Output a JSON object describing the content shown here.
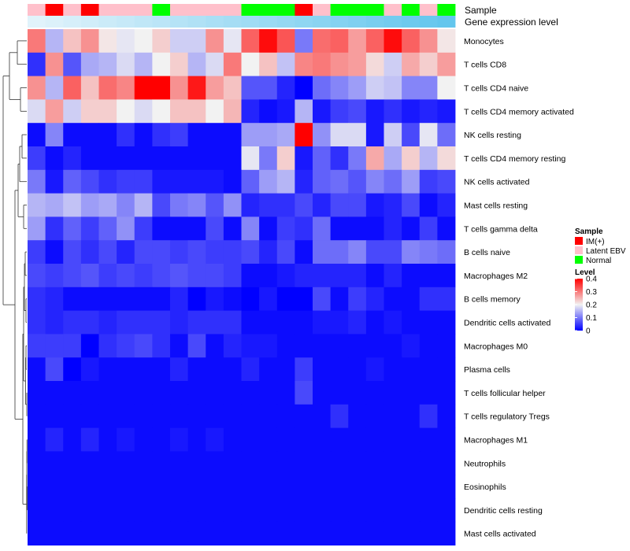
{
  "chart_data": {
    "type": "heatmap",
    "title": "",
    "annotation_tracks": [
      {
        "name": "Sample",
        "values": [
          "Latent EBV",
          "IM(+)",
          "Latent EBV",
          "IM(+)",
          "Latent EBV",
          "Latent EBV",
          "Latent EBV",
          "Normal",
          "Latent EBV",
          "Latent EBV",
          "Latent EBV",
          "Latent EBV",
          "Normal",
          "Normal",
          "Normal",
          "IM(+)",
          "Latent EBV",
          "Normal",
          "Normal",
          "Normal",
          "Latent EBV",
          "Normal",
          "Latent EBV",
          "Normal"
        ]
      },
      {
        "name": "Gene expression level",
        "values": [
          0.02,
          0.06,
          0.1,
          0.14,
          0.18,
          0.22,
          0.26,
          0.3,
          0.34,
          0.38,
          0.42,
          0.46,
          0.5,
          0.54,
          0.58,
          0.62,
          0.66,
          0.7,
          0.74,
          0.78,
          0.82,
          0.86,
          0.9,
          0.94
        ]
      }
    ],
    "rows": [
      "Monocytes",
      "T cells CD8",
      "T cells CD4 naive",
      "T cells CD4 memory activated",
      "NK cells resting",
      "T cells CD4 memory resting",
      "NK cells activated",
      "Mast cells resting",
      "T cells gamma delta",
      "B cells naive",
      "Macrophages M2",
      "B cells memory",
      "Dendritic cells activated",
      "Macrophages M0",
      "Plasma cells",
      "T cells follicular helper",
      "T cells regulatory  Tregs",
      "Macrophages M1",
      "Neutrophils",
      "Eosinophils",
      "Dendritic cells resting",
      "Mast cells activated"
    ],
    "values": [
      [
        0.3,
        0.15,
        0.24,
        0.28,
        0.21,
        0.19,
        0.2,
        0.23,
        0.17,
        0.17,
        0.28,
        0.19,
        0.32,
        0.39,
        0.33,
        0.1,
        0.31,
        0.32,
        0.27,
        0.32,
        0.39,
        0.32,
        0.28,
        0.21
      ],
      [
        0.04,
        0.28,
        0.07,
        0.14,
        0.15,
        0.18,
        0.15,
        0.2,
        0.23,
        0.15,
        0.18,
        0.3,
        0.2,
        0.24,
        0.16,
        0.29,
        0.3,
        0.28,
        0.27,
        0.22,
        0.17,
        0.26,
        0.23,
        0.27
      ],
      [
        0.28,
        0.15,
        0.32,
        0.24,
        0.31,
        0.29,
        0.4,
        0.4,
        0.28,
        0.38,
        0.27,
        0.24,
        0.07,
        0.07,
        0.03,
        0.0,
        0.09,
        0.11,
        0.13,
        0.17,
        0.16,
        0.11,
        0.11,
        0.2
      ],
      [
        0.18,
        0.27,
        0.17,
        0.23,
        0.23,
        0.2,
        0.18,
        0.2,
        0.24,
        0.24,
        0.2,
        0.25,
        0.03,
        0.01,
        0.02,
        0.15,
        0.02,
        0.05,
        0.06,
        0.02,
        0.04,
        0.02,
        0.03,
        0.02
      ],
      [
        0.01,
        0.11,
        0.01,
        0.01,
        0.01,
        0.04,
        0.01,
        0.04,
        0.05,
        0.01,
        0.01,
        0.01,
        0.13,
        0.13,
        0.14,
        0.4,
        0.12,
        0.18,
        0.18,
        0.02,
        0.17,
        0.06,
        0.19,
        0.09
      ],
      [
        0.05,
        0.01,
        0.03,
        0.01,
        0.01,
        0.01,
        0.01,
        0.01,
        0.01,
        0.01,
        0.01,
        0.01,
        0.19,
        0.1,
        0.23,
        0.02,
        0.08,
        0.04,
        0.1,
        0.26,
        0.14,
        0.23,
        0.15,
        0.22
      ],
      [
        0.1,
        0.02,
        0.08,
        0.06,
        0.04,
        0.05,
        0.05,
        0.02,
        0.02,
        0.02,
        0.02,
        0.01,
        0.08,
        0.13,
        0.15,
        0.03,
        0.08,
        0.09,
        0.07,
        0.11,
        0.09,
        0.13,
        0.05,
        0.06
      ],
      [
        0.15,
        0.14,
        0.16,
        0.13,
        0.14,
        0.11,
        0.15,
        0.06,
        0.1,
        0.11,
        0.07,
        0.12,
        0.03,
        0.04,
        0.04,
        0.06,
        0.03,
        0.06,
        0.06,
        0.02,
        0.03,
        0.06,
        0.01,
        0.03
      ],
      [
        0.13,
        0.04,
        0.08,
        0.05,
        0.08,
        0.12,
        0.05,
        0.01,
        0.01,
        0.01,
        0.06,
        0.01,
        0.11,
        0.01,
        0.05,
        0.04,
        0.09,
        0.01,
        0.01,
        0.01,
        0.03,
        0.01,
        0.05,
        0.01
      ],
      [
        0.05,
        0.01,
        0.06,
        0.04,
        0.06,
        0.03,
        0.06,
        0.06,
        0.05,
        0.06,
        0.05,
        0.05,
        0.06,
        0.03,
        0.06,
        0.01,
        0.09,
        0.09,
        0.11,
        0.06,
        0.06,
        0.11,
        0.1,
        0.09
      ],
      [
        0.06,
        0.05,
        0.06,
        0.07,
        0.05,
        0.06,
        0.05,
        0.06,
        0.07,
        0.06,
        0.06,
        0.05,
        0.01,
        0.01,
        0.02,
        0.03,
        0.03,
        0.03,
        0.03,
        0.01,
        0.03,
        0.01,
        0.01,
        0.01
      ],
      [
        0.04,
        0.03,
        0.01,
        0.01,
        0.01,
        0.01,
        0.01,
        0.01,
        0.03,
        0.0,
        0.02,
        0.01,
        0.0,
        0.02,
        0.0,
        0.0,
        0.06,
        0.01,
        0.05,
        0.03,
        0.01,
        0.01,
        0.04,
        0.04
      ],
      [
        0.04,
        0.03,
        0.04,
        0.04,
        0.03,
        0.04,
        0.04,
        0.04,
        0.03,
        0.04,
        0.04,
        0.04,
        0.01,
        0.01,
        0.01,
        0.01,
        0.02,
        0.02,
        0.03,
        0.01,
        0.02,
        0.01,
        0.01,
        0.01
      ],
      [
        0.05,
        0.05,
        0.05,
        0.0,
        0.04,
        0.05,
        0.06,
        0.04,
        0.01,
        0.06,
        0.01,
        0.03,
        0.02,
        0.02,
        0.01,
        0.01,
        0.01,
        0.01,
        0.01,
        0.01,
        0.01,
        0.02,
        0.01,
        0.01
      ],
      [
        0.01,
        0.06,
        0.0,
        0.02,
        0.01,
        0.01,
        0.01,
        0.01,
        0.03,
        0.01,
        0.01,
        0.01,
        0.03,
        0.01,
        0.01,
        0.05,
        0.01,
        0.01,
        0.01,
        0.02,
        0.01,
        0.01,
        0.01,
        0.01
      ],
      [
        0.01,
        0.01,
        0.01,
        0.01,
        0.01,
        0.01,
        0.01,
        0.01,
        0.01,
        0.01,
        0.01,
        0.01,
        0.01,
        0.01,
        0.01,
        0.06,
        0.01,
        0.01,
        0.01,
        0.01,
        0.01,
        0.01,
        0.01,
        0.01
      ],
      [
        0.01,
        0.01,
        0.01,
        0.01,
        0.01,
        0.01,
        0.01,
        0.01,
        0.01,
        0.01,
        0.01,
        0.01,
        0.01,
        0.01,
        0.01,
        0.01,
        0.01,
        0.04,
        0.01,
        0.01,
        0.01,
        0.01,
        0.04,
        0.01
      ],
      [
        0.01,
        0.03,
        0.01,
        0.03,
        0.01,
        0.02,
        0.01,
        0.01,
        0.02,
        0.01,
        0.02,
        0.01,
        0.01,
        0.01,
        0.01,
        0.01,
        0.01,
        0.01,
        0.01,
        0.01,
        0.01,
        0.01,
        0.01,
        0.01
      ],
      [
        0.01,
        0.01,
        0.01,
        0.01,
        0.01,
        0.01,
        0.01,
        0.01,
        0.01,
        0.01,
        0.01,
        0.01,
        0.01,
        0.01,
        0.01,
        0.01,
        0.01,
        0.01,
        0.01,
        0.01,
        0.01,
        0.01,
        0.01,
        0.01
      ],
      [
        0.01,
        0.01,
        0.01,
        0.01,
        0.01,
        0.01,
        0.01,
        0.01,
        0.01,
        0.01,
        0.01,
        0.01,
        0.01,
        0.01,
        0.01,
        0.01,
        0.01,
        0.01,
        0.01,
        0.01,
        0.01,
        0.01,
        0.01,
        0.01
      ],
      [
        0.01,
        0.01,
        0.01,
        0.01,
        0.01,
        0.01,
        0.01,
        0.01,
        0.01,
        0.01,
        0.01,
        0.01,
        0.01,
        0.01,
        0.01,
        0.01,
        0.01,
        0.01,
        0.01,
        0.01,
        0.01,
        0.01,
        0.01,
        0.01
      ],
      [
        0.01,
        0.01,
        0.01,
        0.01,
        0.01,
        0.01,
        0.01,
        0.01,
        0.01,
        0.01,
        0.01,
        0.01,
        0.01,
        0.01,
        0.01,
        0.01,
        0.01,
        0.01,
        0.01,
        0.01,
        0.01,
        0.01,
        0.01,
        0.01
      ]
    ],
    "color_scale": {
      "min": 0,
      "max": 0.4,
      "stops": [
        {
          "value": 0,
          "color": "#0000ff"
        },
        {
          "value": 0.2,
          "color": "#f2f2f2"
        },
        {
          "value": 0.4,
          "color": "#ff0000"
        }
      ]
    },
    "legend": {
      "sample": {
        "title": "Sample",
        "entries": [
          {
            "label": "IM(+)",
            "color": "#ff0000"
          },
          {
            "label": "Latent EBV",
            "color": "#ffc0cb"
          },
          {
            "label": "Normal",
            "color": "#00ff00"
          }
        ]
      },
      "level": {
        "title": "Level",
        "ticks": [
          "0.4",
          "0.3",
          "0.2",
          "0.1",
          "0"
        ],
        "tick_values": [
          0.4,
          0.3,
          0.2,
          0.1,
          0
        ]
      }
    },
    "gene_expression_colors": [
      "#e4f4fb",
      "#5bc3ec"
    ],
    "row_dendrogram": true
  }
}
